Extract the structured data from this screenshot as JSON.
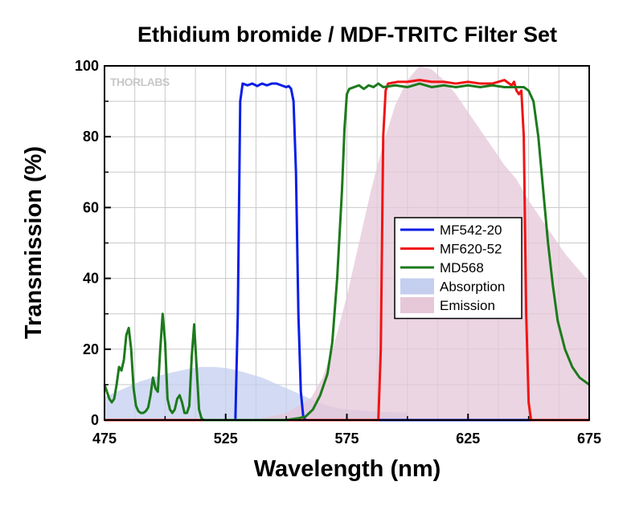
{
  "chart_data": {
    "type": "line",
    "title": "Ethidium bromide / MDF-TRITC Filter Set",
    "xlabel": "Wavelength (nm)",
    "ylabel": "Transmission (%)",
    "xlim": [
      475,
      675
    ],
    "ylim": [
      0,
      100
    ],
    "xticks": [
      475,
      525,
      575,
      625,
      675
    ],
    "yticks": [
      0,
      20,
      40,
      60,
      80,
      100
    ],
    "grid": true,
    "legend_position": "right-center",
    "watermark": "THORLABS",
    "series": [
      {
        "name": "MF542-20",
        "kind": "line",
        "color": "#0a1ee6",
        "points": [
          [
            475,
            0
          ],
          [
            529,
            0
          ],
          [
            530,
            30
          ],
          [
            531,
            90
          ],
          [
            532,
            95
          ],
          [
            534,
            94.5
          ],
          [
            536,
            95
          ],
          [
            538,
            94.3
          ],
          [
            540,
            95
          ],
          [
            542,
            94.5
          ],
          [
            544,
            95
          ],
          [
            546,
            95
          ],
          [
            548,
            94.5
          ],
          [
            550,
            94
          ],
          [
            551,
            94.3
          ],
          [
            552,
            93.5
          ],
          [
            553,
            90
          ],
          [
            554,
            70
          ],
          [
            555,
            30
          ],
          [
            556,
            8
          ],
          [
            557,
            1
          ],
          [
            558,
            0
          ],
          [
            675,
            0
          ]
        ]
      },
      {
        "name": "MF620-52",
        "kind": "line",
        "color": "#f01414",
        "points": [
          [
            475,
            0
          ],
          [
            588,
            0
          ],
          [
            589,
            20
          ],
          [
            590,
            80
          ],
          [
            591,
            93
          ],
          [
            592,
            95
          ],
          [
            596,
            95.5
          ],
          [
            600,
            95.5
          ],
          [
            605,
            96
          ],
          [
            610,
            95.5
          ],
          [
            615,
            95.5
          ],
          [
            620,
            95
          ],
          [
            625,
            95.5
          ],
          [
            630,
            95
          ],
          [
            635,
            95
          ],
          [
            640,
            96
          ],
          [
            643,
            94.5
          ],
          [
            644,
            95.5
          ],
          [
            645,
            93
          ],
          [
            646,
            92
          ],
          [
            647,
            93
          ],
          [
            648,
            80
          ],
          [
            649,
            30
          ],
          [
            650,
            5
          ],
          [
            651,
            0
          ],
          [
            675,
            0
          ]
        ]
      },
      {
        "name": "MD568",
        "kind": "line",
        "color": "#1c7a1c",
        "points": [
          [
            475,
            10
          ],
          [
            477,
            6
          ],
          [
            478,
            5
          ],
          [
            479,
            6
          ],
          [
            480,
            10
          ],
          [
            481,
            15
          ],
          [
            482,
            14
          ],
          [
            483,
            17
          ],
          [
            484,
            24
          ],
          [
            485,
            26
          ],
          [
            486,
            20
          ],
          [
            487,
            9
          ],
          [
            488,
            4
          ],
          [
            489,
            2.5
          ],
          [
            490,
            2
          ],
          [
            491,
            2
          ],
          [
            492,
            2.5
          ],
          [
            493,
            3.5
          ],
          [
            494,
            7
          ],
          [
            495,
            12
          ],
          [
            496,
            9
          ],
          [
            497,
            8
          ],
          [
            498,
            20
          ],
          [
            499,
            30
          ],
          [
            500,
            22
          ],
          [
            501,
            6
          ],
          [
            502,
            3
          ],
          [
            503,
            2
          ],
          [
            504,
            3
          ],
          [
            505,
            6
          ],
          [
            506,
            7
          ],
          [
            507,
            5
          ],
          [
            508,
            2
          ],
          [
            509,
            2
          ],
          [
            510,
            4
          ],
          [
            511,
            18
          ],
          [
            512,
            27
          ],
          [
            513,
            15
          ],
          [
            514,
            3
          ],
          [
            515,
            0.5
          ],
          [
            516,
            0
          ],
          [
            550,
            0
          ],
          [
            555,
            0.5
          ],
          [
            558,
            1
          ],
          [
            561,
            3
          ],
          [
            564,
            7
          ],
          [
            567,
            13
          ],
          [
            569,
            22
          ],
          [
            571,
            40
          ],
          [
            573,
            65
          ],
          [
            574,
            82
          ],
          [
            575,
            92
          ],
          [
            576,
            93.5
          ],
          [
            578,
            94
          ],
          [
            580,
            94.5
          ],
          [
            582,
            93.5
          ],
          [
            584,
            94.5
          ],
          [
            586,
            94
          ],
          [
            588,
            95
          ],
          [
            590,
            94
          ],
          [
            595,
            94.5
          ],
          [
            600,
            94
          ],
          [
            605,
            95
          ],
          [
            610,
            94
          ],
          [
            615,
            94.5
          ],
          [
            620,
            94
          ],
          [
            625,
            94.5
          ],
          [
            630,
            94
          ],
          [
            635,
            94.5
          ],
          [
            640,
            94
          ],
          [
            645,
            94
          ],
          [
            648,
            94
          ],
          [
            650,
            93
          ],
          [
            652,
            90
          ],
          [
            654,
            80
          ],
          [
            656,
            65
          ],
          [
            658,
            50
          ],
          [
            660,
            38
          ],
          [
            662,
            28
          ],
          [
            665,
            20
          ],
          [
            668,
            15
          ],
          [
            671,
            12
          ],
          [
            675,
            10
          ]
        ]
      },
      {
        "name": "Absorption",
        "kind": "area",
        "color": "#c4cff0",
        "points": [
          [
            475,
            6.5
          ],
          [
            480,
            8
          ],
          [
            490,
            11
          ],
          [
            500,
            13
          ],
          [
            510,
            14.5
          ],
          [
            515,
            15
          ],
          [
            520,
            15
          ],
          [
            525,
            14.7
          ],
          [
            530,
            14
          ],
          [
            535,
            13
          ],
          [
            540,
            12
          ],
          [
            545,
            10.5
          ],
          [
            550,
            9
          ],
          [
            555,
            7.5
          ],
          [
            560,
            6
          ],
          [
            565,
            4.5
          ],
          [
            570,
            3.5
          ],
          [
            575,
            3
          ],
          [
            580,
            2.8
          ],
          [
            585,
            2.5
          ],
          [
            590,
            2.3
          ],
          [
            595,
            2.2
          ],
          [
            600,
            2.2
          ],
          [
            600.5,
            0
          ]
        ]
      },
      {
        "name": "Emission",
        "kind": "area",
        "color": "#e6c7d8",
        "points": [
          [
            530,
            0
          ],
          [
            540,
            0.5
          ],
          [
            550,
            2
          ],
          [
            560,
            6
          ],
          [
            565,
            12
          ],
          [
            570,
            22
          ],
          [
            575,
            35
          ],
          [
            580,
            50
          ],
          [
            585,
            65
          ],
          [
            590,
            78
          ],
          [
            595,
            89
          ],
          [
            600,
            96
          ],
          [
            605,
            100
          ],
          [
            610,
            99
          ],
          [
            615,
            96
          ],
          [
            620,
            92
          ],
          [
            625,
            87
          ],
          [
            630,
            82
          ],
          [
            635,
            77
          ],
          [
            640,
            72
          ],
          [
            645,
            68
          ],
          [
            650,
            62
          ],
          [
            655,
            57
          ],
          [
            660,
            52
          ],
          [
            665,
            47
          ],
          [
            670,
            43
          ],
          [
            675,
            39
          ],
          [
            675,
            0
          ]
        ]
      }
    ]
  }
}
